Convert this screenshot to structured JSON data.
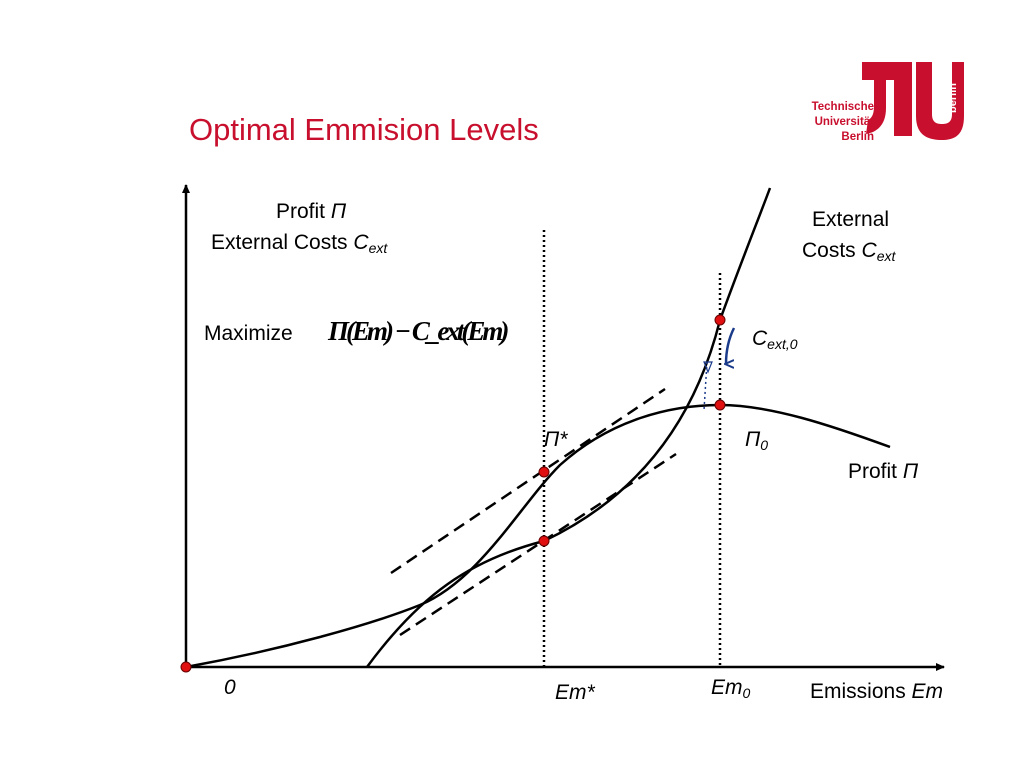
{
  "slide": {
    "title": "Optimal Emmision Levels"
  },
  "logo": {
    "line1": "Technische",
    "line2": "Universität",
    "line3": "Berlin",
    "side_text": "berlin",
    "color": "#c8102e"
  },
  "labels": {
    "y_axis_line1": "Profit",
    "y_axis_line1_symbol": "Π",
    "y_axis_line2": "External Costs",
    "y_axis_line2_symbol": "C",
    "y_axis_line2_sub": "ext",
    "maximize": "Maximize",
    "formula": "Π(Em) − C_ext(Em)",
    "ext_curve_line1": "External",
    "ext_curve_line2": "Costs",
    "ext_curve_symbol": "C",
    "ext_curve_sub": "ext",
    "c_ext0_symbol": "C",
    "c_ext0_sub": "ext,0",
    "pi_star": "Π*",
    "pi0_symbol": "Π",
    "pi0_sub": "0",
    "profit_curve": "Profit",
    "profit_curve_symbol": "Π",
    "origin": "0",
    "em_star": "Em*",
    "em0_symbol": "Em",
    "em0_sub": "0",
    "x_axis": "Emissions",
    "x_axis_symbol": "Em"
  },
  "colors": {
    "title": "#c8102e",
    "point": "#e01010",
    "arrow": "#1a3a8a"
  }
}
